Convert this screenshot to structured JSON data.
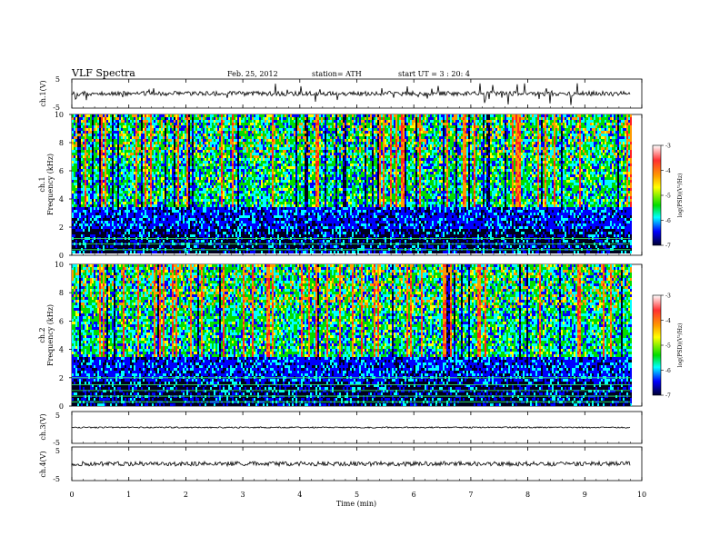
{
  "header": {
    "title": "VLF  Spectra",
    "date": "Feb. 25, 2012",
    "station": "station= ATH",
    "start": "start  UT  =   3  : 20: 4"
  },
  "chart_data": [
    {
      "type": "line",
      "panel": "ch1-waveform",
      "ylabel": "ch.1(V)",
      "ylim": [
        -5,
        5
      ],
      "yticks": [
        "5",
        "-5"
      ],
      "baseline": 0
    },
    {
      "type": "heatmap",
      "panel": "ch1-spectrogram",
      "ylabel_top": "ch.1",
      "ylabel": "Frequency  (kHz)",
      "ylim": [
        0,
        10
      ],
      "yticks": [
        "0",
        "2",
        "4",
        "6",
        "8",
        "10"
      ],
      "colorbar": {
        "label": "log(PSD)(V²/Hz)",
        "range": [
          -7,
          -3
        ],
        "ticks": [
          "-3",
          "-4",
          "-5",
          "-6",
          "-7"
        ]
      }
    },
    {
      "type": "heatmap",
      "panel": "ch2-spectrogram",
      "ylabel_top": "ch.2",
      "ylabel": "Frequency  (kHz)",
      "ylim": [
        0,
        10
      ],
      "yticks": [
        "0",
        "2",
        "4",
        "6",
        "8",
        "10"
      ],
      "colorbar": {
        "label": "log(PSD)(V²/Hz)",
        "range": [
          -7,
          -3
        ],
        "ticks": [
          "-3",
          "-4",
          "-5",
          "-6",
          "-7"
        ]
      }
    },
    {
      "type": "line",
      "panel": "ch3-waveform",
      "ylabel": "ch.3(V)",
      "ylim": [
        -5,
        5
      ],
      "yticks": [
        "5",
        "-5"
      ],
      "baseline": 0
    },
    {
      "type": "line",
      "panel": "ch4-waveform",
      "ylabel": "ch.4(V)",
      "ylim": [
        -5,
        5
      ],
      "yticks": [
        "5",
        "-5"
      ],
      "baseline": 0
    }
  ],
  "xaxis": {
    "label": "Time  (min)",
    "ticks": [
      "0",
      "1",
      "2",
      "3",
      "4",
      "5",
      "6",
      "7",
      "8",
      "9",
      "10"
    ],
    "range": [
      0,
      10
    ],
    "data_end": 9.8
  },
  "colors": {
    "colormap": [
      "#ffffff",
      "#ff2020",
      "#ff9900",
      "#ffff00",
      "#00dd00",
      "#00ffff",
      "#0000ff",
      "#000020"
    ]
  }
}
